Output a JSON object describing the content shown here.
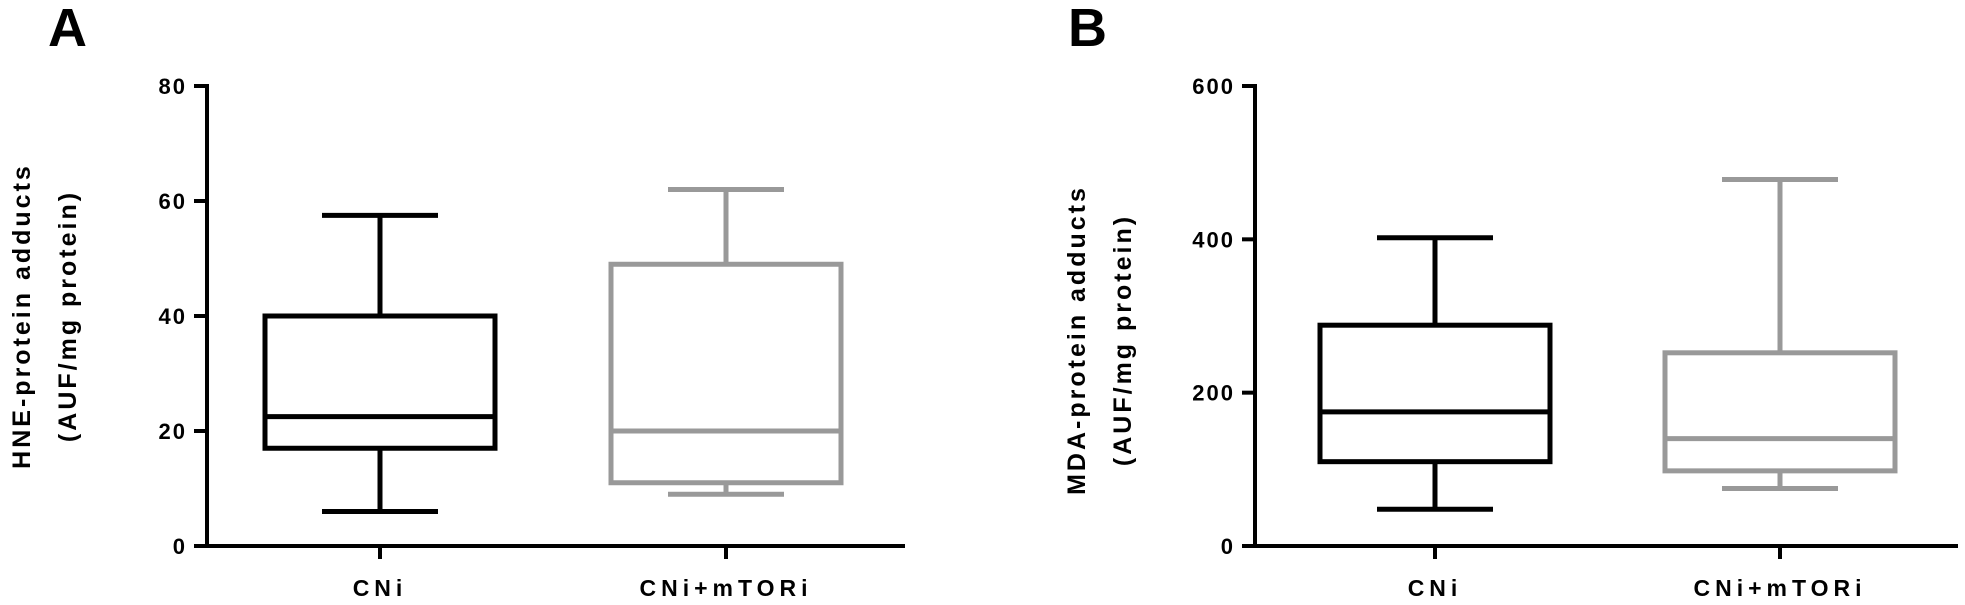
{
  "chart_data": [
    {
      "type": "box",
      "panel_label": "A",
      "ylabel": [
        "HNE-protein adducts",
        "(AUF/mg protein)"
      ],
      "ylim": [
        0,
        80
      ],
      "yticks": [
        0,
        20,
        40,
        60,
        80
      ],
      "categories": [
        "CNi",
        "CNi+mTORi"
      ],
      "boxes": [
        {
          "category": "CNi",
          "min": 6,
          "q1": 17,
          "median": 22.5,
          "q3": 40,
          "max": 57.5,
          "color": "#000000"
        },
        {
          "category": "CNi+mTORi",
          "min": 9,
          "q1": 11,
          "median": 20,
          "q3": 49,
          "max": 62,
          "color": "#999999"
        }
      ]
    },
    {
      "type": "box",
      "panel_label": "B",
      "ylabel": [
        "MDA-protein adducts",
        "(AUF/mg protein)"
      ],
      "ylim": [
        0,
        600
      ],
      "yticks": [
        0,
        200,
        400,
        600
      ],
      "categories": [
        "CNi",
        "CNi+mTORi"
      ],
      "boxes": [
        {
          "category": "CNi",
          "min": 48,
          "q1": 110,
          "median": 175,
          "q3": 288,
          "max": 402,
          "color": "#000000"
        },
        {
          "category": "CNi+mTORi",
          "min": 75,
          "q1": 98,
          "median": 140,
          "q3": 252,
          "max": 478,
          "color": "#999999"
        }
      ]
    }
  ]
}
